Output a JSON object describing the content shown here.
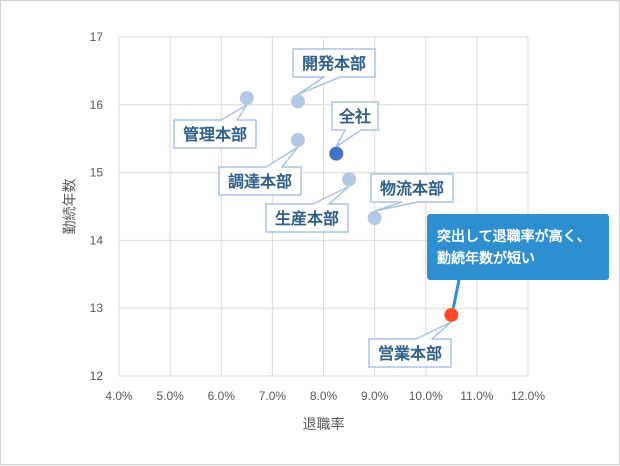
{
  "chart_data": {
    "type": "scatter",
    "title": "",
    "xlabel": "退職率",
    "ylabel": "勤続年数",
    "xlim": [
      4.0,
      12.0
    ],
    "ylim": [
      12,
      17
    ],
    "x_ticks": [
      "4.0%",
      "5.0%",
      "6.0%",
      "7.0%",
      "8.0%",
      "9.0%",
      "10.0%",
      "11.0%",
      "12.0%"
    ],
    "y_ticks": [
      "12",
      "13",
      "14",
      "15",
      "16",
      "17"
    ],
    "grid": true,
    "points": [
      {
        "label": "管理本部",
        "x": 6.5,
        "y": 16.1,
        "color": "#b4c7e7"
      },
      {
        "label": "開発本部",
        "x": 7.5,
        "y": 16.05,
        "color": "#b4c7e7"
      },
      {
        "label": "調達本部",
        "x": 7.5,
        "y": 15.48,
        "color": "#b4c7e7"
      },
      {
        "label": "全社",
        "x": 8.25,
        "y": 15.28,
        "color": "#4472c4"
      },
      {
        "label": "生産本部",
        "x": 8.5,
        "y": 14.9,
        "color": "#b4c7e7"
      },
      {
        "label": "物流本部",
        "x": 9.0,
        "y": 14.33,
        "color": "#b4c7e7"
      },
      {
        "label": "営業本部",
        "x": 10.5,
        "y": 12.9,
        "color": "#ff4b2b"
      }
    ],
    "annotation": {
      "lines": [
        "突出して退職率が高く、",
        "勤続年数が短い"
      ],
      "target": "営業本部",
      "background": "#2e8fd0"
    }
  }
}
